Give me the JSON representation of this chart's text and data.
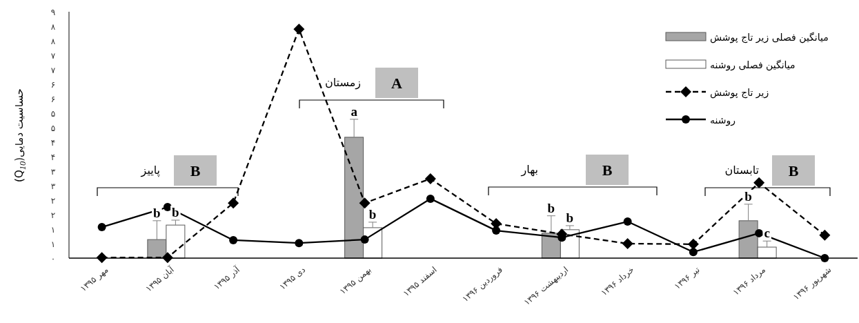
{
  "chart_data": {
    "type": "bar",
    "ylabel": "حساسیت دمایی(Q$_{10}$)",
    "categories": [
      "مهر ۱۳۹۵",
      "آبان ۱۳۹۵",
      "آذر ۱۳۹۵",
      "دی ۱۳۹۵",
      "بهمن ۱۳۹۵",
      "اسفند ۱۳۹۵",
      "فروردین ۱۳۹۶",
      "اردیبهشت ۱۳۹۶",
      "خرداد ۱۳۹۶",
      "تیر ۱۳۹۶",
      "مرداد ۱۳۹۶",
      "شهریور ۱۳۹۶"
    ],
    "ylim": [
      0,
      8.5
    ],
    "yticks": [
      {
        "value": 0,
        "label": "۰"
      },
      {
        "value": 0.5,
        "label": "۱"
      },
      {
        "value": 1,
        "label": "۱"
      },
      {
        "value": 1.5,
        "label": "۲"
      },
      {
        "value": 2,
        "label": "۲"
      },
      {
        "value": 2.5,
        "label": "۳"
      },
      {
        "value": 3,
        "label": "۳"
      },
      {
        "value": 3.5,
        "label": "۴"
      },
      {
        "value": 4,
        "label": "۴"
      },
      {
        "value": 4.5,
        "label": "۵"
      },
      {
        "value": 5,
        "label": "۵"
      },
      {
        "value": 5.5,
        "label": "۶"
      },
      {
        "value": 6,
        "label": "۶"
      },
      {
        "value": 6.5,
        "label": "۷"
      },
      {
        "value": 7,
        "label": "۷"
      },
      {
        "value": 7.5,
        "label": "۸"
      },
      {
        "value": 8,
        "label": "۸"
      },
      {
        "value": 8.5,
        "label": "۹"
      }
    ],
    "series": [
      {
        "name": "میانگین فصلی زیر تاج پوشش",
        "color": "#a6a6a6",
        "values": [
          null,
          0.64,
          null,
          null,
          4.17,
          null,
          null,
          0.86,
          null,
          null,
          1.29,
          null
        ],
        "errors": [
          null,
          [
            0.64,
            1.29
          ],
          null,
          null,
          [
            4.17,
            4.79
          ],
          null,
          null,
          [
            0.86,
            1.46
          ],
          null,
          null,
          [
            1.29,
            1.86
          ],
          null
        ],
        "value_labels": [
          null,
          "b",
          null,
          null,
          "a",
          null,
          null,
          "b",
          null,
          null,
          "b",
          null
        ]
      },
      {
        "name": "میانگین فصلی روشنه",
        "color": "#ffffff",
        "values": [
          null,
          1.14,
          null,
          null,
          1.05,
          null,
          null,
          0.98,
          null,
          null,
          0.38,
          null
        ],
        "errors": [
          null,
          [
            1.14,
            1.31
          ],
          null,
          null,
          [
            1.05,
            1.24
          ],
          null,
          null,
          [
            0.98,
            1.12
          ],
          null,
          null,
          [
            0.38,
            0.59
          ],
          null
        ],
        "value_labels": [
          null,
          "b",
          null,
          null,
          "b",
          null,
          null,
          "b",
          null,
          null,
          "c",
          null
        ]
      },
      {
        "name": "زیر تاج پوشش",
        "type": "line",
        "color": "#000000",
        "line_style": "dashed",
        "marker": "diamond",
        "values": [
          0.02,
          0.02,
          1.9,
          7.9,
          1.9,
          2.74,
          1.19,
          0.83,
          0.5,
          0.48,
          2.6,
          0.79
        ]
      },
      {
        "name": "روشنه",
        "type": "line",
        "color": "#000000",
        "line_style": "solid",
        "marker": "circle",
        "values": [
          1.07,
          1.76,
          0.62,
          0.52,
          0.64,
          2.05,
          0.95,
          0.71,
          1.26,
          0.21,
          0.86,
          0.0
        ]
      }
    ],
    "annotations": [
      "پاییز",
      "B",
      "زمستان",
      "A",
      "بهار",
      "B",
      "تابستان",
      "B"
    ],
    "legend": "top right"
  }
}
